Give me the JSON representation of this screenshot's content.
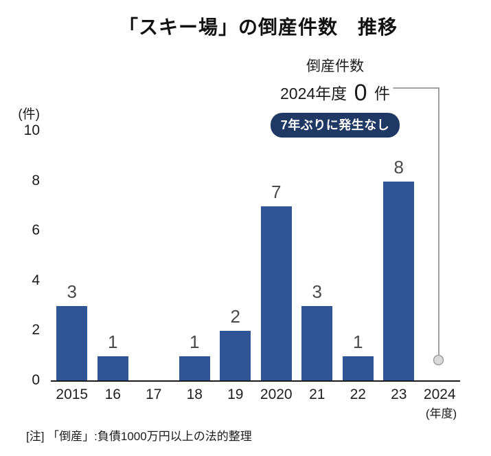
{
  "title": "「スキー場」の倒産件数　推移",
  "annotation": {
    "label": "倒産件数",
    "year_label": "2024年度",
    "value": "0",
    "unit": "件",
    "badge": "7年ぶりに発生なし"
  },
  "y_axis": {
    "unit_label": "(件)",
    "ticks": [
      10,
      8,
      6,
      4,
      2,
      0
    ]
  },
  "x_axis_suffix": "(年度)",
  "note": "[注] 「倒産」:負債1000万円以上の法的整理",
  "colors": {
    "bar": "#2f5597",
    "badge_bg": "#1f3864",
    "badge_text": "#ffffff",
    "pointer_line": "#a0a0a0",
    "pointer_dot_fill": "#d9d9d9",
    "pointer_dot_stroke": "#a0a0a0"
  },
  "chart_data": {
    "type": "bar",
    "title": "「スキー場」の倒産件数 推移",
    "categories": [
      "2015",
      "16",
      "17",
      "18",
      "19",
      "2020",
      "21",
      "22",
      "23",
      "2024"
    ],
    "values": [
      3,
      1,
      0,
      1,
      2,
      7,
      3,
      1,
      8,
      0
    ],
    "xlabel": "年度",
    "ylabel": "件",
    "ylim": [
      0,
      10
    ],
    "y_tick_step": 2,
    "grid": false,
    "legend": "none",
    "bar_labels": [
      3,
      1,
      null,
      1,
      2,
      7,
      3,
      1,
      8,
      null
    ],
    "highlight_note": "2024年度は0件(7年ぶりに発生なし)"
  }
}
